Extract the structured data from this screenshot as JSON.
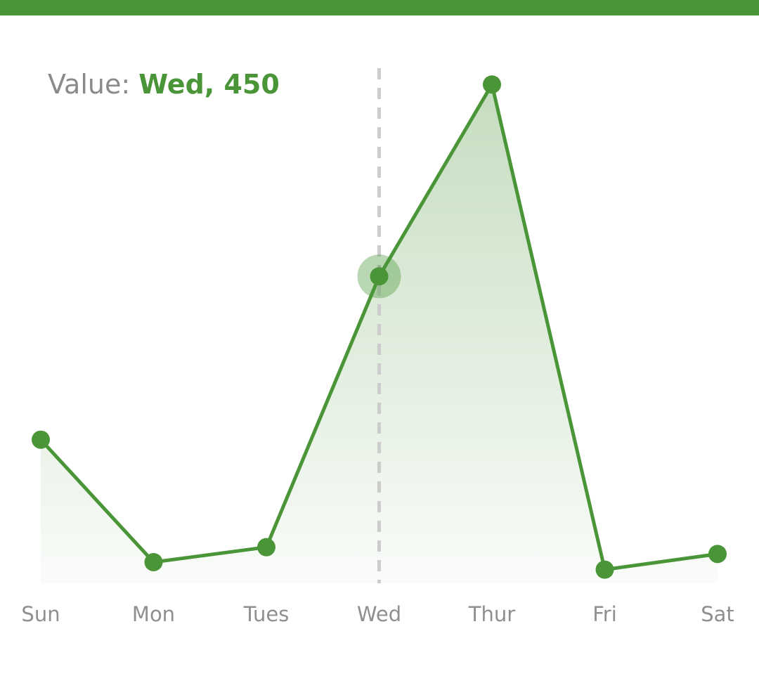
{
  "header": {
    "accent_color": "#4a9538"
  },
  "readout": {
    "label": "Value:",
    "value": "Wed, 450"
  },
  "chart_data": {
    "type": "area",
    "categories": [
      "Sun",
      "Mon",
      "Tues",
      "Wed",
      "Thur",
      "Fri",
      "Sat"
    ],
    "values": [
      210,
      30,
      52,
      450,
      732,
      19,
      42
    ],
    "ylim": [
      -1,
      756
    ],
    "selected_index": 3,
    "grid": false,
    "line_color": "#4a9538",
    "fill_color": "#4a9538",
    "cursor_color": "#cccccc"
  }
}
